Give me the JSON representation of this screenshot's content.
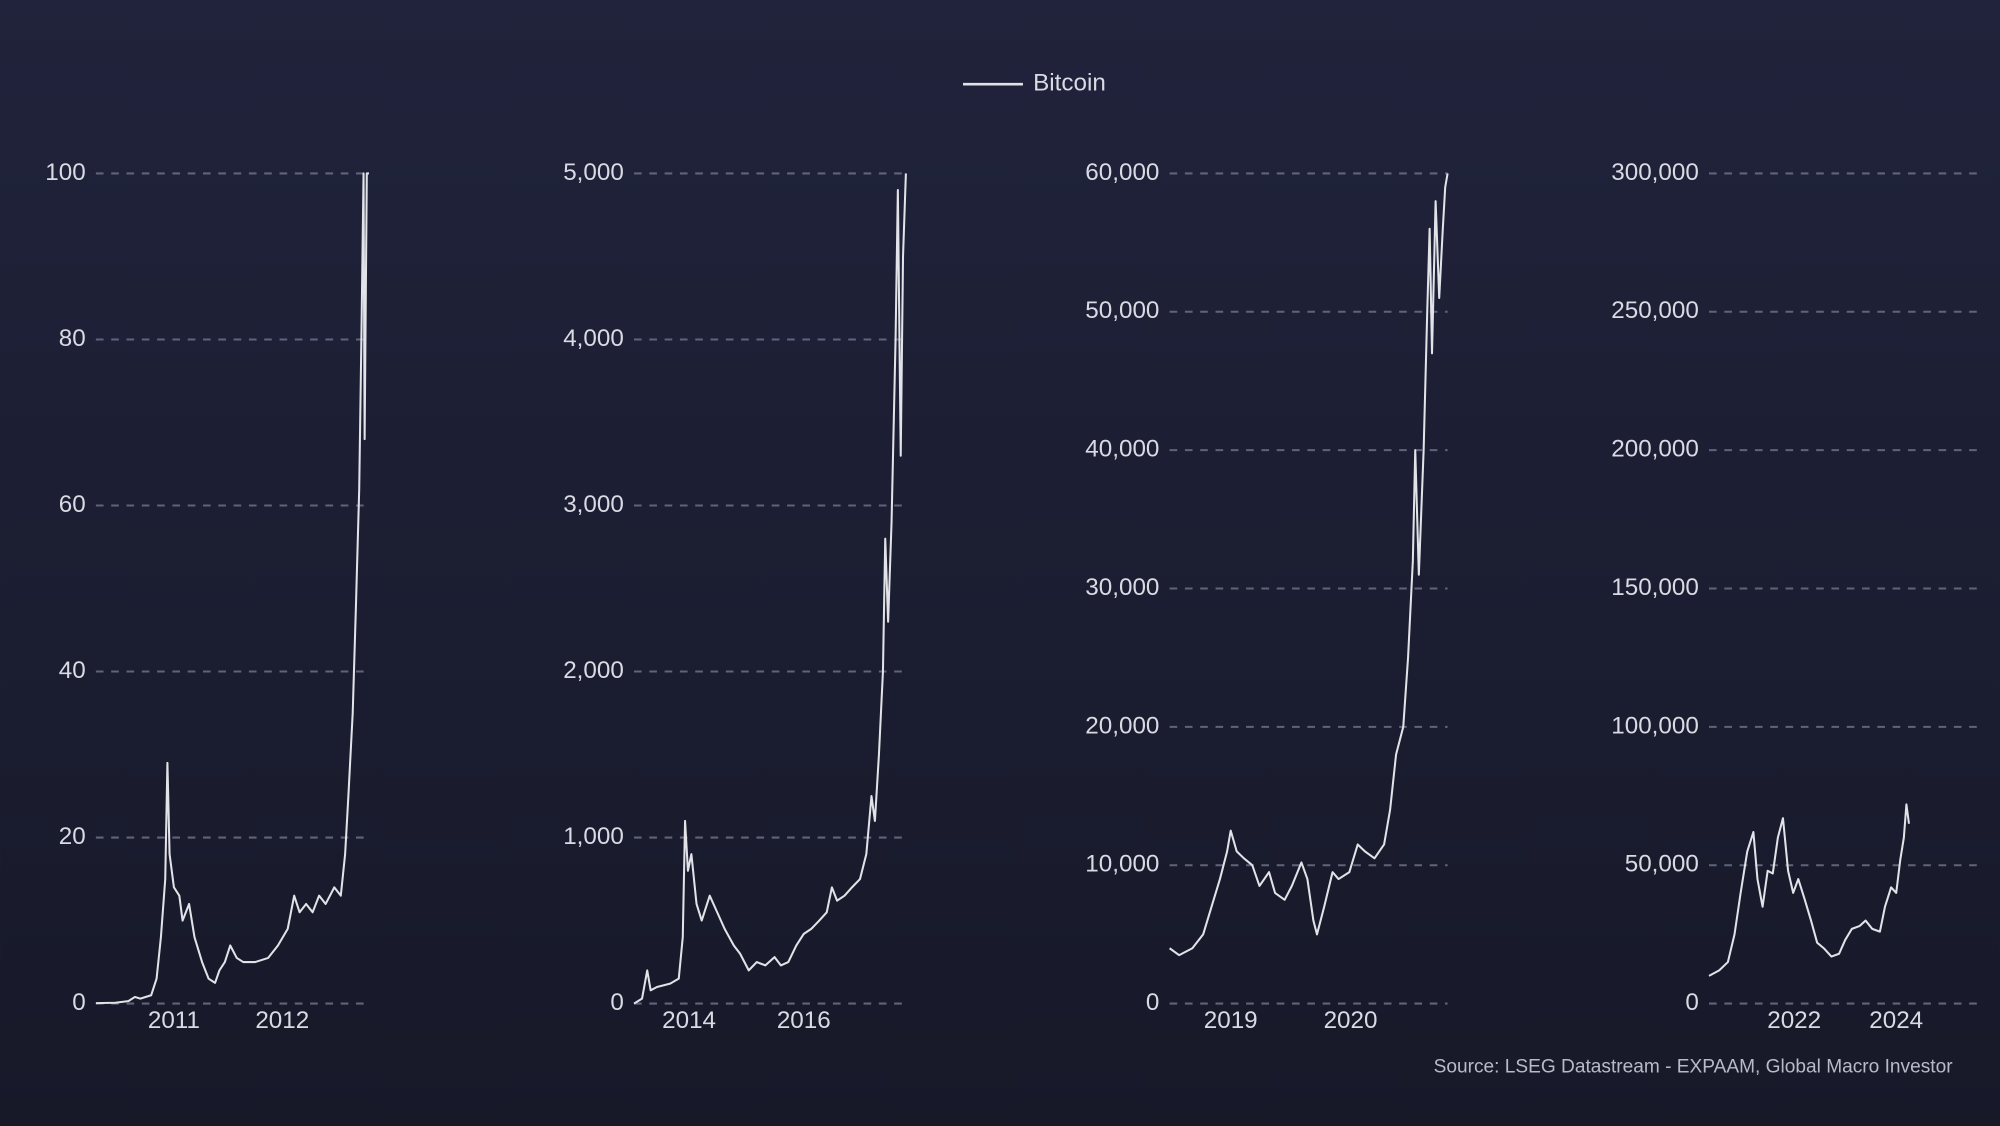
{
  "chart_data": [
    {
      "type": "line",
      "x": [
        2010.28,
        2010.46,
        2010.58,
        2010.64,
        2010.69,
        2010.79,
        2010.84,
        2010.88,
        2010.92,
        2010.94,
        2010.96,
        2011.0,
        2011.05,
        2011.08,
        2011.14,
        2011.19,
        2011.26,
        2011.32,
        2011.38,
        2011.42,
        2011.47,
        2011.52,
        2011.58,
        2011.64,
        2011.75,
        2011.87,
        2011.96,
        2012.05,
        2012.11,
        2012.16,
        2012.22,
        2012.28,
        2012.34,
        2012.4,
        2012.48,
        2012.54,
        2012.58,
        2012.61,
        2012.65,
        2012.68,
        2012.71,
        2012.73,
        2012.75,
        2012.76,
        2012.78,
        2012.8
      ],
      "series": [
        {
          "name": "Bitcoin",
          "color": "#e2e3e8",
          "values": [
            0.05,
            0.1,
            0.3,
            0.8,
            0.6,
            1,
            3,
            8,
            15,
            29,
            18,
            14,
            13,
            10,
            12,
            8,
            5,
            3,
            2.5,
            4,
            5,
            7,
            5.5,
            5,
            5,
            5.5,
            7,
            9,
            13,
            11,
            12,
            11,
            13,
            12,
            14,
            13,
            18,
            25,
            35,
            48,
            62,
            80,
            100,
            68,
            100,
            100
          ]
        }
      ],
      "xlim": [
        2010.28,
        2012.81
      ],
      "xticks": [
        2011,
        2012
      ],
      "ylim": [
        0,
        100
      ],
      "yticks": [
        0,
        20,
        40,
        60,
        80,
        100
      ],
      "grid": true
    },
    {
      "type": "line",
      "x": [
        2013.04,
        2013.18,
        2013.27,
        2013.33,
        2013.44,
        2013.67,
        2013.82,
        2013.89,
        2013.93,
        2013.98,
        2014.04,
        2014.13,
        2014.22,
        2014.36,
        2014.49,
        2014.62,
        2014.78,
        2014.89,
        2015.04,
        2015.18,
        2015.33,
        2015.49,
        2015.6,
        2015.73,
        2015.87,
        2016.0,
        2016.13,
        2016.27,
        2016.4,
        2016.49,
        2016.58,
        2016.71,
        2016.84,
        2016.98,
        2017.09,
        2017.18,
        2017.24,
        2017.31,
        2017.38,
        2017.42,
        2017.47,
        2017.53,
        2017.6,
        2017.64,
        2017.69,
        2017.73,
        2017.78
      ],
      "series": [
        {
          "color": "#e2e3e8",
          "values": [
            0,
            30,
            200,
            80,
            100,
            120,
            150,
            400,
            1100,
            800,
            900,
            600,
            500,
            650,
            550,
            450,
            350,
            300,
            200,
            250,
            230,
            280,
            230,
            250,
            350,
            420,
            450,
            500,
            550,
            700,
            620,
            650,
            700,
            750,
            900,
            1250,
            1100,
            1500,
            2000,
            2800,
            2300,
            2900,
            4000,
            4900,
            3300,
            4500,
            5000
          ]
        }
      ],
      "xlim": [
        2013.04,
        2017.82
      ],
      "xticks": [
        2014,
        2016
      ],
      "ylim": [
        0,
        5000
      ],
      "yticks": [
        0,
        {
          "value": 1000,
          "label": "1,000"
        },
        {
          "value": 2000,
          "label": "2,000"
        },
        {
          "value": 3000,
          "label": "3,000"
        },
        {
          "value": 4000,
          "label": "4,000"
        },
        {
          "value": 5000,
          "label": "5,000"
        }
      ],
      "grid": true
    },
    {
      "type": "line",
      "x": [
        2018.49,
        2018.57,
        2018.68,
        2018.77,
        2018.84,
        2018.91,
        2018.97,
        2019.0,
        2019.05,
        2019.11,
        2019.18,
        2019.24,
        2019.32,
        2019.37,
        2019.45,
        2019.51,
        2019.59,
        2019.64,
        2019.69,
        2019.72,
        2019.78,
        2019.85,
        2019.9,
        2019.99,
        2020.06,
        2020.12,
        2020.2,
        2020.28,
        2020.33,
        2020.38,
        2020.44,
        2020.48,
        2020.52,
        2020.54,
        2020.57,
        2020.61,
        2020.64,
        2020.66,
        2020.68,
        2020.71,
        2020.74,
        2020.77,
        2020.79,
        2020.81
      ],
      "series": [
        {
          "color": "#e2e3e8",
          "values": [
            4000,
            3500,
            4000,
            5000,
            7000,
            9000,
            11000,
            12500,
            11000,
            10500,
            10000,
            8500,
            9500,
            8000,
            7500,
            8500,
            10200,
            9000,
            6000,
            5000,
            7000,
            9500,
            9000,
            9500,
            11500,
            11000,
            10500,
            11500,
            14000,
            18000,
            20000,
            25000,
            32000,
            40000,
            31000,
            40000,
            50000,
            56000,
            47000,
            58000,
            51000,
            56000,
            59000,
            60000
          ]
        }
      ],
      "xlim": [
        2018.49,
        2020.81
      ],
      "xticks": [
        2019,
        2020
      ],
      "ylim": [
        0,
        60000
      ],
      "yticks": [
        0,
        {
          "value": 10000,
          "label": "10,000"
        },
        {
          "value": 20000,
          "label": "20,000"
        },
        {
          "value": 30000,
          "label": "30,000"
        },
        {
          "value": 40000,
          "label": "40,000"
        },
        {
          "value": 50000,
          "label": "50,000"
        },
        {
          "value": 60000,
          "label": "60,000"
        }
      ],
      "grid": true
    },
    {
      "type": "line",
      "x": [
        2020.33,
        2020.53,
        2020.7,
        2020.83,
        2020.95,
        2021.08,
        2021.2,
        2021.28,
        2021.38,
        2021.48,
        2021.58,
        2021.68,
        2021.78,
        2021.88,
        2021.98,
        2022.08,
        2022.2,
        2022.33,
        2022.45,
        2022.58,
        2022.73,
        2022.88,
        2023.0,
        2023.13,
        2023.28,
        2023.4,
        2023.53,
        2023.68,
        2023.78,
        2023.9,
        2024.0,
        2024.08,
        2024.15,
        2024.2,
        2024.25
      ],
      "series": [
        {
          "color": "#e2e3e8",
          "values": [
            10000,
            12000,
            15000,
            25000,
            40000,
            55000,
            62000,
            45000,
            35000,
            48000,
            47000,
            60000,
            67000,
            48000,
            40000,
            45000,
            38000,
            30000,
            22000,
            20000,
            17000,
            18000,
            23000,
            27000,
            28000,
            30000,
            27000,
            26000,
            35000,
            42000,
            40000,
            52000,
            60000,
            72000,
            65000
          ]
        }
      ],
      "xlim": [
        2020.33,
        2025.63
      ],
      "xticks": [
        2022,
        2024
      ],
      "ylim": [
        0,
        300000
      ],
      "yticks": [
        0,
        {
          "value": 50000,
          "label": "50,000"
        },
        {
          "value": 100000,
          "label": "100,000"
        },
        {
          "value": 150000,
          "label": "150,000"
        },
        {
          "value": 200000,
          "label": "200,000"
        },
        {
          "value": 250000,
          "label": "250,000"
        },
        {
          "value": 300000,
          "label": "300,000"
        }
      ],
      "grid": true
    }
  ],
  "source": "Source: LSEG Datastream - EXPAAM, Global Macro Investor"
}
